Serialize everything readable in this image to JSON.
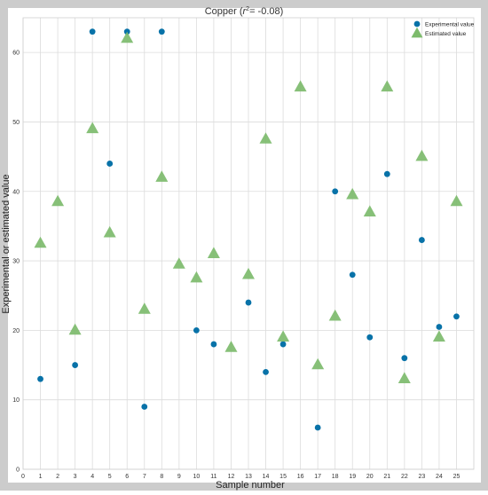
{
  "chart_data": {
    "type": "scatter",
    "title_base": "Copper (",
    "title_r": "r",
    "title_sup": "2",
    "title_tail": "= -0.08)",
    "xlabel": "Sample number",
    "ylabel": "Experimental or estimated value",
    "xlim": [
      0,
      26
    ],
    "ylim": [
      0,
      65
    ],
    "x_ticks": [
      0,
      1,
      2,
      3,
      4,
      5,
      6,
      7,
      8,
      9,
      10,
      11,
      12,
      13,
      14,
      15,
      16,
      17,
      18,
      19,
      20,
      21,
      22,
      23,
      24,
      25
    ],
    "y_ticks": [
      0,
      10,
      20,
      30,
      40,
      50,
      60
    ],
    "grid": true,
    "legend_position": "top-right",
    "series": [
      {
        "name": "Experimental value",
        "marker": "circle",
        "color": "#0872a8",
        "points": [
          [
            1,
            13
          ],
          [
            3,
            15
          ],
          [
            4,
            63
          ],
          [
            5,
            44
          ],
          [
            6,
            63
          ],
          [
            7,
            9
          ],
          [
            8,
            63
          ],
          [
            10,
            20
          ],
          [
            11,
            18
          ],
          [
            13,
            24
          ],
          [
            14,
            14
          ],
          [
            15,
            18
          ],
          [
            17,
            6
          ],
          [
            18,
            40
          ],
          [
            19,
            28
          ],
          [
            20,
            19
          ],
          [
            21,
            42.5
          ],
          [
            22,
            16
          ],
          [
            23,
            33
          ],
          [
            24,
            20.5
          ],
          [
            25,
            22
          ]
        ]
      },
      {
        "name": "Estimated value",
        "marker": "triangle",
        "color": "#7dbb6c",
        "points": [
          [
            1,
            32.5
          ],
          [
            2,
            38.5
          ],
          [
            3,
            20
          ],
          [
            4,
            49
          ],
          [
            5,
            34
          ],
          [
            6,
            62
          ],
          [
            7,
            23
          ],
          [
            8,
            42
          ],
          [
            9,
            29.5
          ],
          [
            10,
            27.5
          ],
          [
            11,
            31
          ],
          [
            12,
            17.5
          ],
          [
            13,
            28
          ],
          [
            14,
            47.5
          ],
          [
            15,
            19
          ],
          [
            16,
            55
          ],
          [
            17,
            15
          ],
          [
            18,
            22
          ],
          [
            19,
            39.5
          ],
          [
            20,
            37
          ],
          [
            21,
            55
          ],
          [
            22,
            13
          ],
          [
            23,
            45
          ],
          [
            24,
            19
          ],
          [
            25,
            38.5
          ]
        ]
      }
    ]
  }
}
